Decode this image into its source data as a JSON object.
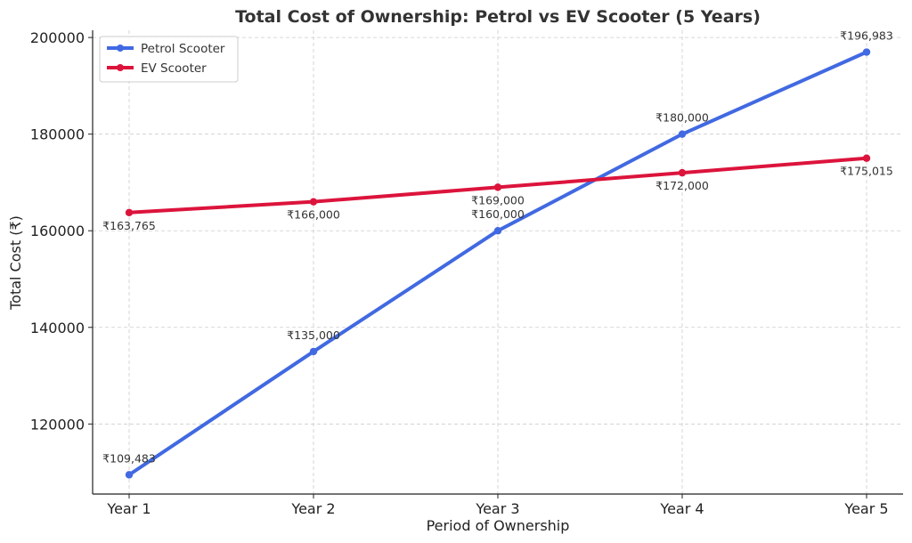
{
  "chart_data": {
    "type": "line",
    "title": "Total Cost of Ownership: Petrol vs EV Scooter (5 Years)",
    "xlabel": "Period of Ownership",
    "ylabel": "Total Cost (₹)",
    "categories": [
      "Year 1",
      "Year 2",
      "Year 3",
      "Year 4",
      "Year 5"
    ],
    "ylim": [
      105500,
      201500
    ],
    "yticks": [
      120000,
      140000,
      160000,
      180000,
      200000
    ],
    "ytick_labels": [
      "120000",
      "140000",
      "160000",
      "180000",
      "200000"
    ],
    "grid": true,
    "legend_position": "top-left",
    "series": [
      {
        "name": "Petrol Scooter",
        "color": "#4169e1",
        "values": [
          109483,
          135000,
          160000,
          180000,
          196983
        ],
        "labels": [
          "₹109,483",
          "₹135,000",
          "₹160,000",
          "₹180,000",
          "₹196,983"
        ],
        "label_position": "above"
      },
      {
        "name": "EV Scooter",
        "color": "#dc143c",
        "values": [
          163765,
          166000,
          169000,
          172000,
          175015
        ],
        "labels": [
          "₹163,765",
          "₹166,000",
          "₹169,000",
          "₹172,000",
          "₹175,015"
        ],
        "label_position": "below"
      }
    ]
  }
}
